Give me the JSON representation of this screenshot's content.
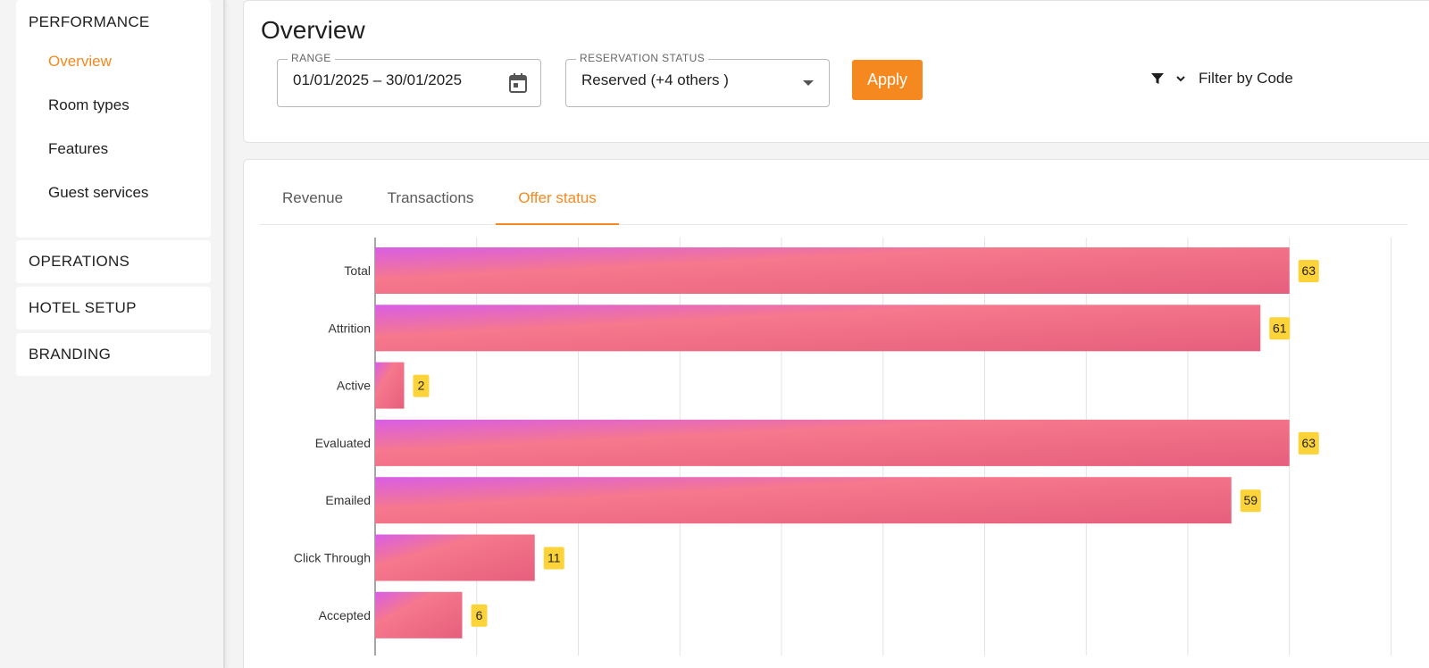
{
  "sidebar": {
    "performance": {
      "heading": "PERFORMANCE",
      "items": [
        {
          "label": "Overview",
          "active": true
        },
        {
          "label": "Room types",
          "active": false
        },
        {
          "label": "Features",
          "active": false
        },
        {
          "label": "Guest services",
          "active": false
        }
      ]
    },
    "sections": [
      {
        "label": "OPERATIONS"
      },
      {
        "label": "HOTEL SETUP"
      },
      {
        "label": "BRANDING"
      }
    ]
  },
  "header": {
    "title": "Overview",
    "range": {
      "label": "RANGE",
      "value": "01/01/2025 – 30/01/2025"
    },
    "reservation_status": {
      "label": "RESERVATION STATUS",
      "value": "Reserved (+4 others )"
    },
    "apply_label": "Apply",
    "filter_label": "Filter by Code"
  },
  "tabs": [
    {
      "label": "Revenue",
      "active": false
    },
    {
      "label": "Transactions",
      "active": false
    },
    {
      "label": "Offer status",
      "active": true
    }
  ],
  "colors": {
    "accent": "#f5891f",
    "bar_start": "#d85ee6",
    "bar_mid": "#f6788c",
    "bar_end": "#e65f7d",
    "label_badge": "#fdd33a"
  },
  "chart_data": {
    "type": "bar",
    "orientation": "horizontal",
    "categories": [
      "Total",
      "Attrition",
      "Active",
      "Evaluated",
      "Emailed",
      "Click Through",
      "Accepted"
    ],
    "values": [
      63,
      61,
      2,
      63,
      59,
      11,
      6
    ],
    "xlim": [
      0,
      70
    ],
    "grid": true,
    "title": "",
    "xlabel": "",
    "ylabel": ""
  }
}
